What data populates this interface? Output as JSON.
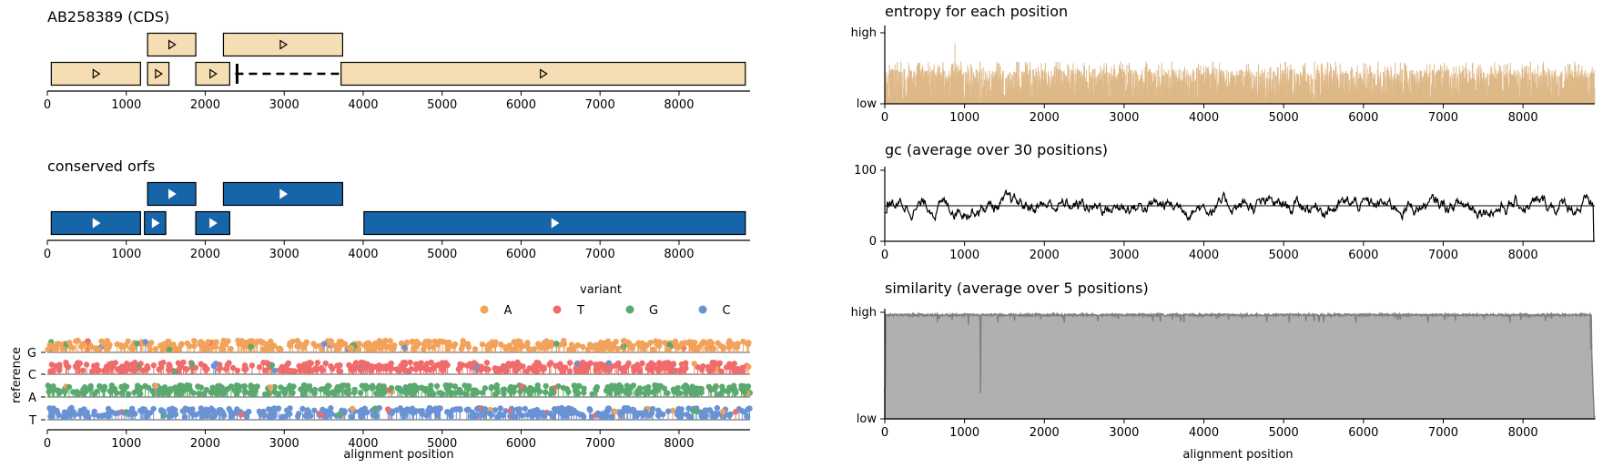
{
  "colors": {
    "cds_fill": "#f5deb3",
    "orf_fill": "#1565a8",
    "entropy": "#deb887",
    "gc_line": "#000000",
    "similarity_fill": "#b0b0b0",
    "similarity_edge": "#808080",
    "variant_A": "#f2a25a",
    "variant_T": "#f06b6b",
    "variant_G": "#5aa96e",
    "variant_C": "#6a93d4"
  },
  "x_ticks": [
    "0",
    "1000",
    "2000",
    "3000",
    "4000",
    "5000",
    "6000",
    "7000",
    "8000"
  ],
  "alignment_length": 8900,
  "chart_data": [
    {
      "type": "gene-map",
      "title": "AB258389 (CDS)",
      "xlim": [
        0,
        8900
      ],
      "features": [
        {
          "start": 50,
          "end": 1180,
          "strand": "+",
          "row": 1
        },
        {
          "start": 1270,
          "end": 1540,
          "strand": "+",
          "row": 1
        },
        {
          "start": 1270,
          "end": 1880,
          "strand": "+",
          "row": 2
        },
        {
          "start": 1880,
          "end": 2310,
          "strand": "+",
          "row": 1
        },
        {
          "start": 2230,
          "end": 3740,
          "strand": "+",
          "row": 2
        },
        {
          "start": 2380,
          "end": 3700,
          "strand": "+",
          "row": 1,
          "style": "gap"
        },
        {
          "start": 3720,
          "end": 8840,
          "strand": "+",
          "row": 1
        }
      ]
    },
    {
      "type": "gene-map",
      "title": "conserved orfs",
      "xlim": [
        0,
        8900
      ],
      "features": [
        {
          "start": 50,
          "end": 1180,
          "strand": "+",
          "row": 1
        },
        {
          "start": 1230,
          "end": 1500,
          "strand": "+",
          "row": 1
        },
        {
          "start": 1270,
          "end": 1880,
          "strand": "+",
          "row": 2
        },
        {
          "start": 1880,
          "end": 2310,
          "strand": "+",
          "row": 1
        },
        {
          "start": 2230,
          "end": 3740,
          "strand": "+",
          "row": 2
        },
        {
          "start": 4010,
          "end": 8840,
          "strand": "+",
          "row": 1
        }
      ]
    },
    {
      "type": "scatter",
      "xlabel": "alignment position",
      "ylabel": "reference",
      "xlim": [
        0,
        8900
      ],
      "y_categories": [
        "T",
        "A",
        "C",
        "G"
      ],
      "legend_title": "variant",
      "legend": [
        "A",
        "T",
        "G",
        "C"
      ],
      "legend_position": "top-right",
      "note": "lollipop variants per reference base; dominant variant color by row: G→A, C→T, A→G, T→C"
    },
    {
      "type": "bar",
      "title": "entropy for each position",
      "xlim": [
        0,
        8900
      ],
      "y_ticks": [
        "low",
        "high"
      ],
      "typical_range": [
        0.05,
        0.6
      ],
      "peak": {
        "x": 880,
        "value": 0.85
      }
    },
    {
      "type": "line",
      "title": "gc (average over 30 positions)",
      "xlim": [
        0,
        8900
      ],
      "ylim": [
        0,
        100
      ],
      "y_ticks": [
        "0",
        "100"
      ],
      "reference_line": 50,
      "typical_range": [
        30,
        75
      ]
    },
    {
      "type": "area",
      "title": "similarity (average over 5 positions)",
      "xlabel": "alignment position",
      "xlim": [
        0,
        8900
      ],
      "y_ticks": [
        "low",
        "high"
      ],
      "dips": [
        {
          "x": 1200,
          "value": 0.24
        },
        {
          "x": 1050,
          "value": 0.88
        },
        {
          "x": 8850,
          "value": 0.65
        }
      ]
    }
  ]
}
